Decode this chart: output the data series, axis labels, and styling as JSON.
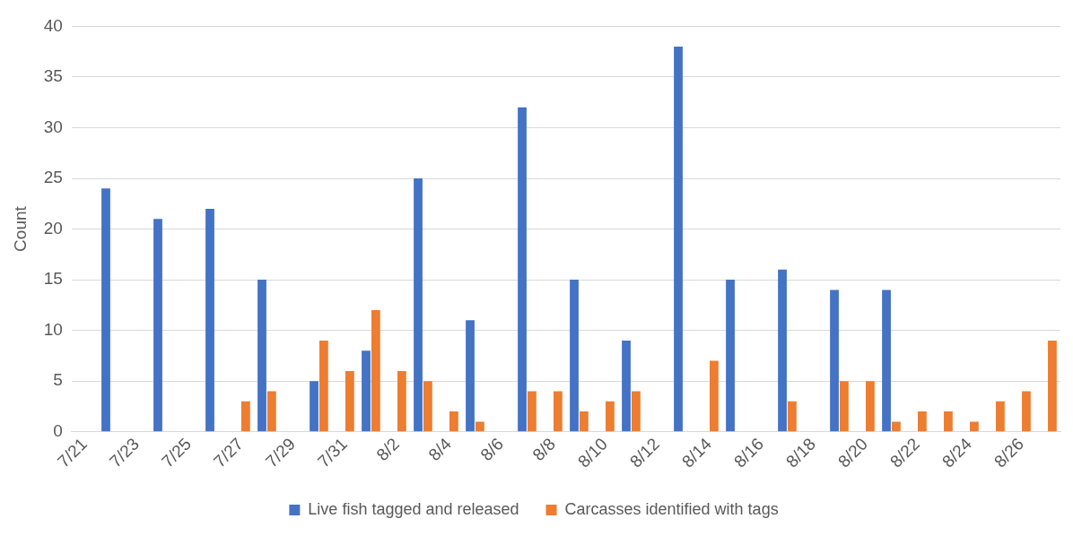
{
  "chart_data": {
    "type": "bar",
    "ylabel": "Count",
    "categories": [
      "7/21",
      null,
      "7/23",
      null,
      "7/25",
      null,
      "7/27",
      null,
      "7/29",
      null,
      "7/31",
      null,
      "8/2",
      null,
      "8/4",
      null,
      "8/6",
      null,
      "8/8",
      null,
      "8/10",
      null,
      "8/12",
      null,
      "8/14",
      null,
      "8/16",
      null,
      "8/18",
      null,
      "8/20",
      null,
      "8/22",
      null,
      "8/24",
      null,
      "8/26",
      null
    ],
    "series": [
      {
        "name": "Live fish tagged and released",
        "color": "#4472c4",
        "values": [
          0,
          24,
          0,
          21,
          0,
          22,
          0,
          15,
          0,
          5,
          0,
          8,
          0,
          25,
          0,
          11,
          0,
          32,
          0,
          15,
          0,
          9,
          0,
          38,
          0,
          15,
          0,
          16,
          0,
          14,
          0,
          14,
          0,
          0,
          0,
          0,
          0,
          0
        ]
      },
      {
        "name": "Carcasses identified with tags",
        "color": "#ed7d31",
        "values": [
          0,
          0,
          0,
          0,
          0,
          0,
          3,
          4,
          0,
          9,
          6,
          12,
          6,
          5,
          2,
          1,
          0,
          4,
          4,
          2,
          3,
          4,
          0,
          0,
          7,
          0,
          0,
          3,
          0,
          5,
          5,
          1,
          2,
          2,
          1,
          3,
          4,
          9
        ]
      }
    ],
    "ylim": [
      0,
      40
    ],
    "yticks": [
      0,
      5,
      10,
      15,
      20,
      25,
      30,
      35,
      40
    ],
    "grid": "y",
    "legend": "bottom"
  }
}
